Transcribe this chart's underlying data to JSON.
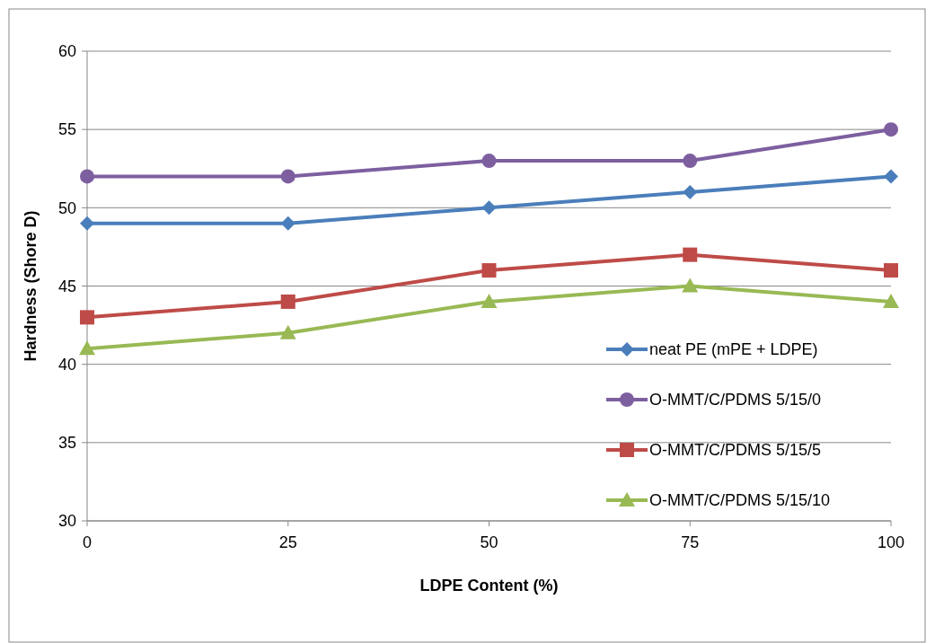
{
  "chart_data": {
    "type": "line",
    "xlabel": "LDPE Content (%)",
    "ylabel": "Hardness (Shore D)",
    "x": [
      0,
      25,
      50,
      75,
      100
    ],
    "xlim": [
      0,
      100
    ],
    "xticks": [
      0,
      25,
      50,
      75,
      100
    ],
    "ylim": [
      30,
      60
    ],
    "yticks": [
      30,
      35,
      40,
      45,
      50,
      55,
      60
    ],
    "grid": "y",
    "legend": "bottom right",
    "line_style": "solid",
    "series": [
      {
        "name": "neat PE (mPE + LDPE)",
        "color": "#4a7ebb",
        "marker": "diamond",
        "values": [
          49,
          49,
          50,
          51,
          52
        ]
      },
      {
        "name": "O-MMT/C/PDMS 5/15/0",
        "color": "#7d5fa0",
        "marker": "circle",
        "values": [
          52,
          52,
          53,
          53,
          55
        ]
      },
      {
        "name": "O-MMT/C/PDMS 5/15/5",
        "color": "#be4b48",
        "marker": "square",
        "values": [
          43,
          44,
          46,
          47,
          46
        ]
      },
      {
        "name": "O-MMT/C/PDMS 5/15/10",
        "color": "#98b954",
        "marker": "triangle",
        "values": [
          41,
          42,
          44,
          45,
          44
        ]
      }
    ]
  }
}
